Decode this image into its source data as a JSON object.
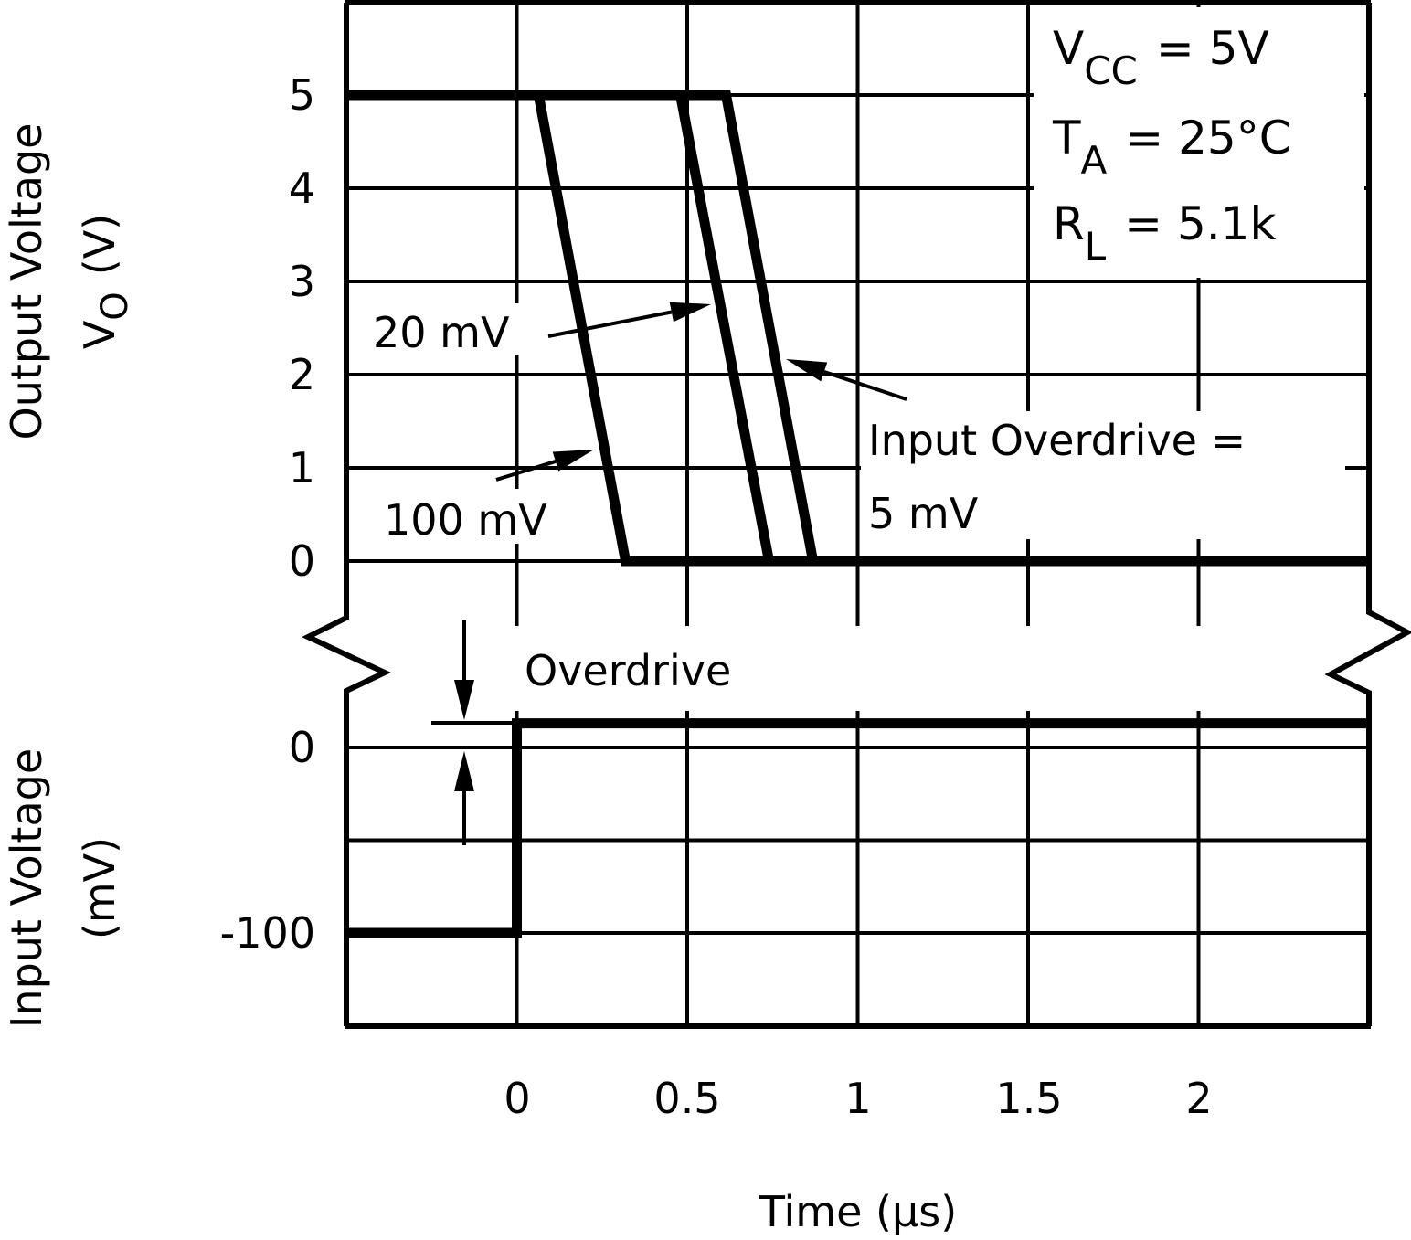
{
  "chart_data": {
    "type": "line",
    "xlabel": "Time (µs)",
    "x_ticks": [
      "0",
      "0.5",
      "1",
      "1.5",
      "2"
    ],
    "xlim": [
      -0.5,
      2.5
    ],
    "grid": true,
    "panels": {
      "output": {
        "ylabel_line1": "Output Voltage",
        "ylabel_line2": "V",
        "ylabel_sub": "O",
        "ylabel_unit": "(V)",
        "y_ticks": [
          "0",
          "1",
          "2",
          "3",
          "4",
          "5"
        ],
        "ylim": [
          0,
          6
        ]
      },
      "input": {
        "ylabel_line1": "Input Voltage",
        "ylabel_line2": "(mV)",
        "y_ticks": [
          "0",
          "-100"
        ],
        "ylim": [
          -150,
          0
        ]
      }
    },
    "series": [
      {
        "panel": "output",
        "label": "100 mV",
        "x": [
          -0.5,
          0.064,
          0.319,
          2.5
        ],
        "y": [
          5,
          5,
          0,
          0
        ]
      },
      {
        "panel": "output",
        "label": "20 mV",
        "x": [
          -0.5,
          0.48,
          0.74,
          2.5
        ],
        "y": [
          5,
          5,
          0,
          0
        ]
      },
      {
        "panel": "output",
        "label_line1": "Input Overdrive =",
        "label_line2": "5 mV",
        "x": [
          -0.5,
          0.614,
          0.869,
          2.5
        ],
        "y": [
          5,
          5,
          0,
          0
        ]
      },
      {
        "panel": "input",
        "x": [
          -0.5,
          0,
          0,
          2.5
        ],
        "y": [
          -100,
          -100,
          13,
          13
        ]
      }
    ],
    "annotations": {
      "overdrive": "Overdrive",
      "conditions": [
        {
          "sym": "V",
          "sub": "CC",
          "val": "=  5V"
        },
        {
          "sym": "T",
          "sub": "A",
          "val": "=  25°C"
        },
        {
          "sym": "R",
          "sub": "L",
          "val": "=  5.1k"
        }
      ]
    }
  }
}
